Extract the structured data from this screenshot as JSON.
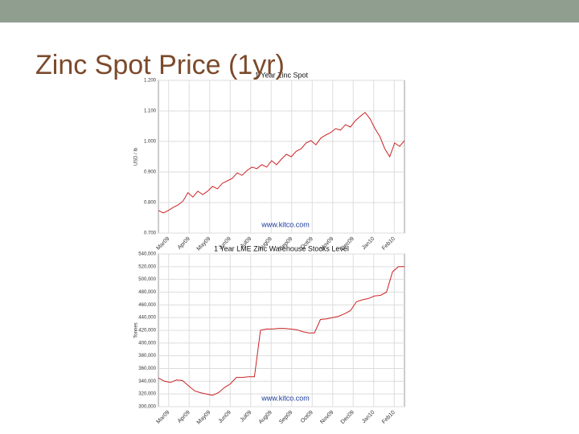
{
  "slide_title": "Zinc Spot Price (1yr)",
  "chart_data": [
    {
      "type": "line",
      "title": "1 Year Zinc Spot",
      "y_label": "USD / lb",
      "annotation": "www.kitco.com",
      "color": "#cc2222",
      "grid": true,
      "xtick_labels": [
        "Mar09",
        "Apr09",
        "May09",
        "Jun09",
        "Jul09",
        "Aug09",
        "Sep09",
        "Oct09",
        "Nov09",
        "Dec09",
        "Jan10",
        "Feb10"
      ],
      "ylim": [
        0.7,
        1.2
      ],
      "yticks": [
        {
          "value": 0.7,
          "label": "0.700"
        },
        {
          "value": 0.8,
          "label": "0.800"
        },
        {
          "value": 0.9,
          "label": "0.900"
        },
        {
          "value": 1.0,
          "label": "1.000"
        },
        {
          "value": 1.1,
          "label": "1.100"
        },
        {
          "value": 1.2,
          "label": "1.200"
        }
      ],
      "values": [
        0.774,
        0.766,
        0.774,
        0.784,
        0.792,
        0.805,
        0.832,
        0.818,
        0.837,
        0.826,
        0.837,
        0.853,
        0.845,
        0.863,
        0.871,
        0.879,
        0.897,
        0.889,
        0.905,
        0.916,
        0.911,
        0.924,
        0.916,
        0.937,
        0.924,
        0.942,
        0.958,
        0.95,
        0.968,
        0.976,
        0.995,
        1.003,
        0.989,
        1.011,
        1.021,
        1.029,
        1.042,
        1.037,
        1.055,
        1.047,
        1.068,
        1.082,
        1.095,
        1.074,
        1.042,
        1.016,
        0.976,
        0.95,
        0.995,
        0.984,
        1.003
      ]
    },
    {
      "type": "line",
      "title": "1 Year LME Zinc Warehouse Stocks Level",
      "y_label": "Tonnes",
      "annotation": "www.kitco.com",
      "color": "#cc2222",
      "grid": true,
      "xtick_labels": [
        "Mar09",
        "Apr09",
        "May09",
        "Jun09",
        "Jul09",
        "Aug09",
        "Sep09",
        "Oct09",
        "Nov09",
        "Dec09",
        "Jan10",
        "Feb10"
      ],
      "ylim": [
        300000,
        540000
      ],
      "yticks": [
        {
          "value": 300000,
          "label": "300,000"
        },
        {
          "value": 320000,
          "label": "320,000"
        },
        {
          "value": 340000,
          "label": "340,000"
        },
        {
          "value": 360000,
          "label": "360,000"
        },
        {
          "value": 380000,
          "label": "380,000"
        },
        {
          "value": 400000,
          "label": "400,000"
        },
        {
          "value": 420000,
          "label": "420,000"
        },
        {
          "value": 440000,
          "label": "440,000"
        },
        {
          "value": 460000,
          "label": "460,000"
        },
        {
          "value": 480000,
          "label": "480,000"
        },
        {
          "value": 500000,
          "label": "500,000"
        },
        {
          "value": 520000,
          "label": "520,000"
        },
        {
          "value": 540000,
          "label": "540,000"
        }
      ],
      "values": [
        345000,
        340000,
        338000,
        342000,
        341000,
        333000,
        325000,
        322000,
        320000,
        318000,
        322000,
        330000,
        336000,
        346000,
        346000,
        347000,
        347000,
        420000,
        422000,
        422000,
        423000,
        423000,
        422000,
        421000,
        418000,
        416000,
        416000,
        437000,
        438000,
        440000,
        442000,
        446000,
        451000,
        465000,
        468000,
        470000,
        474000,
        475000,
        480000,
        512000,
        520000,
        520000
      ]
    }
  ]
}
